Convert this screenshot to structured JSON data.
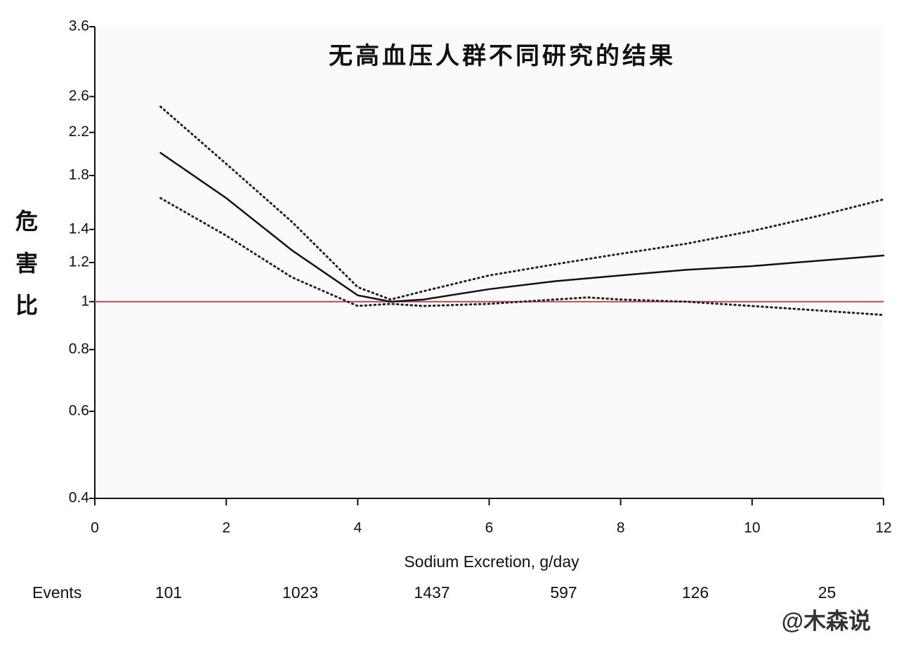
{
  "chart_data": {
    "type": "line",
    "title": "无高血压人群不同研究的结果",
    "y_label": "危害比",
    "x_label": "Sodium Excretion, g/day",
    "x": [
      1,
      2,
      3,
      4,
      4.5,
      5,
      6,
      7,
      7.5,
      8,
      9,
      10,
      11,
      12
    ],
    "series": [
      {
        "color": "#111111",
        "style": "solid",
        "values": [
          2.0,
          1.62,
          1.27,
          1.03,
          1.0,
          1.01,
          1.06,
          1.1,
          1.115,
          1.13,
          1.16,
          1.18,
          1.21,
          1.24
        ]
      },
      {
        "color": "#222222",
        "style": "dotted",
        "values": [
          2.48,
          1.9,
          1.45,
          1.07,
          1.01,
          1.05,
          1.13,
          1.19,
          1.22,
          1.25,
          1.31,
          1.39,
          1.49,
          1.61
        ]
      },
      {
        "color": "#222222",
        "style": "dotted",
        "values": [
          1.62,
          1.36,
          1.12,
          0.98,
          0.99,
          0.98,
          0.99,
          1.01,
          1.02,
          1.01,
          1.0,
          0.98,
          0.96,
          0.94
        ]
      }
    ],
    "reference_line": {
      "value": 1,
      "color": "#b5495b"
    },
    "xlim": [
      0,
      12
    ],
    "xticks": [
      0,
      2,
      4,
      6,
      8,
      10,
      12
    ],
    "ylim": [
      0.4,
      3.6
    ],
    "yticks": [
      0.4,
      0.6,
      0.8,
      1,
      1.2,
      1.4,
      1.8,
      2.2,
      2.6,
      3.6
    ],
    "y_scale": "log",
    "events": {
      "label": "Events",
      "values": [
        101,
        1023,
        1437,
        597,
        126,
        25
      ]
    },
    "watermark": "@木森说"
  }
}
